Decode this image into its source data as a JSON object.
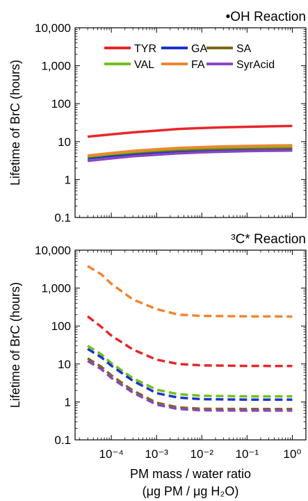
{
  "chart_data": [
    {
      "type": "line",
      "title": "•OH Reaction",
      "xlabel": "",
      "ylabel": "Lifetime of BrC (hours)",
      "xscale": "log",
      "yscale": "log",
      "xlim": [
        1.58e-05,
        2.0
      ],
      "ylim": [
        0.1,
        10000
      ],
      "xticks": [
        0.0001,
        0.001,
        0.01,
        0.1,
        1
      ],
      "xticklabels": [
        "",
        "",
        "",
        "",
        ""
      ],
      "yticks": [
        0.1,
        1,
        10,
        100,
        1000,
        10000
      ],
      "yticklabels": [
        "0.1",
        "1",
        "10",
        "100",
        "1,000",
        "10,000"
      ],
      "line_style": "solid",
      "legend_position": "top-center",
      "series": [
        {
          "name": "TYR",
          "color": "#e8262b",
          "x": [
            3e-05,
            0.0001,
            0.0003,
            0.001,
            0.003,
            0.01,
            0.03,
            0.1,
            0.3,
            1.0
          ],
          "values": [
            13.5,
            15.5,
            17.5,
            19.5,
            21.5,
            22.8,
            23.8,
            24.6,
            25.2,
            25.8
          ]
        },
        {
          "name": "GA",
          "color": "#1c34c8",
          "x": [
            3e-05,
            0.0001,
            0.0003,
            0.001,
            0.003,
            0.01,
            0.03,
            0.1,
            0.3,
            1.0
          ],
          "values": [
            3.6,
            4.2,
            4.7,
            5.2,
            5.6,
            5.9,
            6.1,
            6.3,
            6.4,
            6.5
          ]
        },
        {
          "name": "SA",
          "color": "#7d6a1a",
          "x": [
            3e-05,
            0.0001,
            0.0003,
            0.001,
            0.003,
            0.01,
            0.03,
            0.1,
            0.3,
            1.0
          ],
          "values": [
            3.9,
            4.6,
            5.1,
            5.6,
            6.0,
            6.3,
            6.5,
            6.7,
            6.8,
            6.9
          ]
        },
        {
          "name": "VAL",
          "color": "#6fc11f",
          "x": [
            3e-05,
            0.0001,
            0.0003,
            0.001,
            0.003,
            0.01,
            0.03,
            0.1,
            0.3,
            1.0
          ],
          "values": [
            4.1,
            4.8,
            5.4,
            6.0,
            6.5,
            6.9,
            7.1,
            7.3,
            7.4,
            7.5
          ]
        },
        {
          "name": "FA",
          "color": "#f28532",
          "x": [
            3e-05,
            0.0001,
            0.0003,
            0.001,
            0.003,
            0.01,
            0.03,
            0.1,
            0.3,
            1.0
          ],
          "values": [
            4.3,
            5.0,
            5.7,
            6.3,
            6.8,
            7.2,
            7.5,
            7.7,
            7.9,
            8.0
          ]
        },
        {
          "name": "SyrAcid",
          "color": "#8a46c2",
          "x": [
            3e-05,
            0.0001,
            0.0003,
            0.001,
            0.003,
            0.01,
            0.03,
            0.1,
            0.3,
            1.0
          ],
          "values": [
            3.1,
            3.6,
            4.1,
            4.5,
            4.9,
            5.2,
            5.4,
            5.6,
            5.7,
            5.8
          ]
        }
      ]
    },
    {
      "type": "line",
      "title": "³C* Reaction",
      "xlabel": "PM mass / water ratio",
      "xlabel2": "(μg PM / μg H₂O)",
      "ylabel": "Lifetime of BrC (hours)",
      "xscale": "log",
      "yscale": "log",
      "xlim": [
        1.58e-05,
        2.0
      ],
      "ylim": [
        0.1,
        10000
      ],
      "xticks": [
        0.0001,
        0.001,
        0.01,
        0.1,
        1
      ],
      "xticklabels": [
        "10⁻⁴",
        "10⁻³",
        "10⁻²",
        "10⁻¹",
        "10⁰"
      ],
      "yticks": [
        0.1,
        1,
        10,
        100,
        1000,
        10000
      ],
      "yticklabels": [
        "0.1",
        "1",
        "10",
        "100",
        "1,000",
        "10,000"
      ],
      "line_style": "dashed",
      "series": [
        {
          "name": "FA",
          "color": "#f28532",
          "x": [
            3e-05,
            6e-05,
            0.0001,
            0.0003,
            0.001,
            0.003,
            0.01,
            0.1,
            1.0
          ],
          "values": [
            3800,
            2300,
            1300,
            500,
            280,
            200,
            185,
            180,
            178
          ]
        },
        {
          "name": "TYR",
          "color": "#e8262b",
          "x": [
            3e-05,
            6e-05,
            0.0001,
            0.0003,
            0.001,
            0.003,
            0.01,
            0.1,
            1.0
          ],
          "values": [
            180,
            95,
            56,
            24,
            13,
            10,
            9.2,
            8.9,
            8.8
          ]
        },
        {
          "name": "VAL",
          "color": "#6fc11f",
          "x": [
            3e-05,
            6e-05,
            0.0001,
            0.0003,
            0.001,
            0.003,
            0.01,
            0.1,
            1.0
          ],
          "values": [
            30,
            18,
            10.5,
            4.2,
            2.1,
            1.6,
            1.45,
            1.4,
            1.4
          ]
        },
        {
          "name": "GA",
          "color": "#1c34c8",
          "x": [
            3e-05,
            6e-05,
            0.0001,
            0.0003,
            0.001,
            0.003,
            0.01,
            0.1,
            1.0
          ],
          "values": [
            25,
            15,
            9.0,
            3.6,
            1.7,
            1.3,
            1.18,
            1.15,
            1.15
          ]
        },
        {
          "name": "SA",
          "color": "#7d6a1a",
          "x": [
            3e-05,
            6e-05,
            0.0001,
            0.0003,
            0.001,
            0.003,
            0.01,
            0.1,
            1.0
          ],
          "values": [
            14,
            8.5,
            5.0,
            2.0,
            0.95,
            0.72,
            0.66,
            0.65,
            0.65
          ]
        },
        {
          "name": "SyrAcid",
          "color": "#8a46c2",
          "x": [
            3e-05,
            6e-05,
            0.0001,
            0.0003,
            0.001,
            0.003,
            0.01,
            0.1,
            1.0
          ],
          "values": [
            12,
            7.3,
            4.3,
            1.75,
            0.85,
            0.65,
            0.6,
            0.59,
            0.59
          ]
        }
      ]
    }
  ]
}
